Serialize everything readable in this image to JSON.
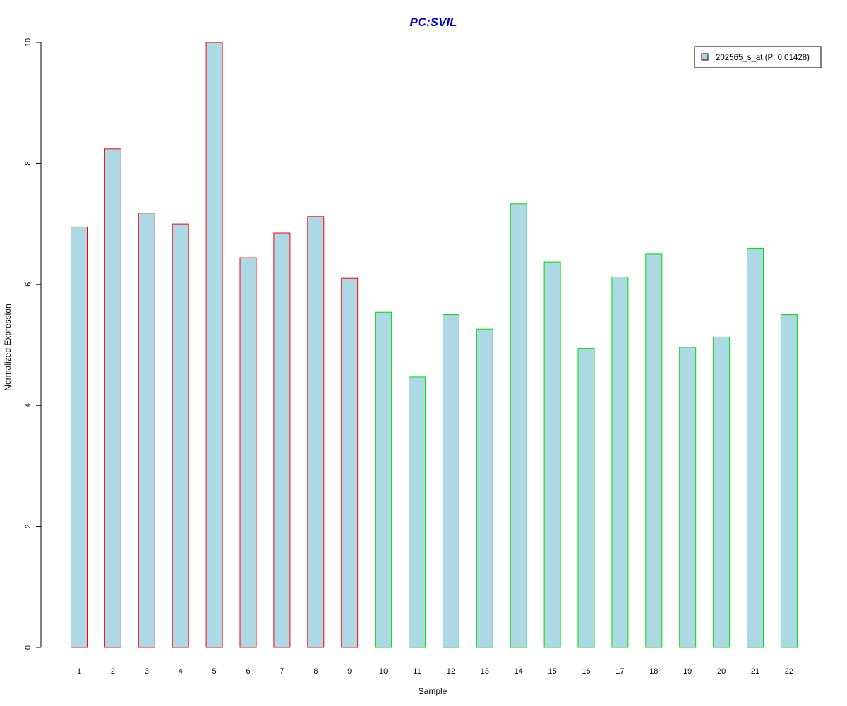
{
  "chart_data": {
    "type": "bar",
    "title": "PC:SVIL",
    "xlabel": "Sample",
    "ylabel": "Normalized Expression",
    "categories": [
      "1",
      "2",
      "3",
      "4",
      "5",
      "6",
      "7",
      "8",
      "9",
      "10",
      "11",
      "12",
      "13",
      "14",
      "15",
      "16",
      "17",
      "18",
      "19",
      "20",
      "21",
      "22"
    ],
    "values": [
      6.95,
      8.24,
      7.18,
      7.0,
      10.0,
      6.44,
      6.85,
      7.12,
      6.1,
      5.54,
      4.47,
      5.5,
      5.26,
      7.33,
      6.37,
      4.94,
      6.12,
      6.5,
      4.96,
      5.13,
      6.6,
      5.5
    ],
    "group": [
      "a",
      "a",
      "a",
      "a",
      "a",
      "a",
      "a",
      "a",
      "a",
      "b",
      "b",
      "b",
      "b",
      "b",
      "b",
      "b",
      "b",
      "b",
      "b",
      "b",
      "b",
      "b"
    ],
    "group_colors": {
      "a": "#ff0000",
      "b": "#00dd00"
    },
    "bar_fill": "#add8e6",
    "title_color": "#0000cc",
    "ylim": [
      0,
      10
    ],
    "yticks": [
      0,
      2,
      4,
      6,
      8,
      10
    ],
    "legend": {
      "placement": "top-right",
      "entries": [
        {
          "label": "202565_s_at (P: 0.01428)",
          "color": "#add8e6"
        }
      ]
    }
  }
}
